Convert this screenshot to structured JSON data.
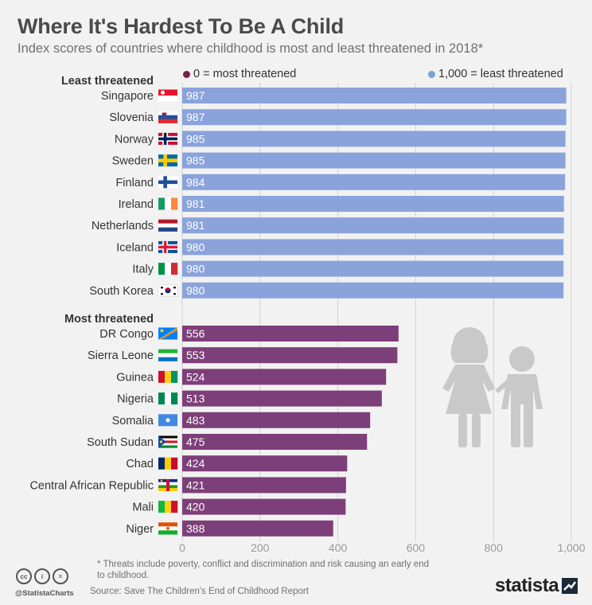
{
  "header": {
    "title": "Where It's Hardest To Be A Child",
    "subtitle": "Index scores of countries where childhood is most and least threatened in 2018*"
  },
  "legend": {
    "purple_label": "0 = most threatened",
    "blue_label": "1,000 = least threatened"
  },
  "colors": {
    "least": "#8aa3db",
    "most": "#7d3f79",
    "purple_dot": "#7a1f4e",
    "blue_dot": "#7aa0d8",
    "grid": "#d0d0d0",
    "figure": "#c9c9c9"
  },
  "chart_data": {
    "type": "bar",
    "orientation": "horizontal",
    "title": "Where It's Hardest To Be A Child",
    "subtitle": "Index scores of countries where childhood is most and least threatened in 2018*",
    "xlim": [
      0,
      1000
    ],
    "ticks": [
      0,
      200,
      400,
      600,
      800,
      1000
    ],
    "tick_labels": [
      "0",
      "200",
      "400",
      "600",
      "800",
      "1,000"
    ],
    "grid": true,
    "groups": [
      {
        "name": "Least threatened",
        "color_key": "least",
        "categories": [
          "Singapore",
          "Slovenia",
          "Norway",
          "Sweden",
          "Finland",
          "Ireland",
          "Netherlands",
          "Iceland",
          "Italy",
          "South Korea"
        ],
        "values": [
          987,
          987,
          985,
          985,
          984,
          981,
          981,
          980,
          980,
          980
        ]
      },
      {
        "name": "Most threatened",
        "color_key": "most",
        "categories": [
          "DR Congo",
          "Sierra Leone",
          "Guinea",
          "Nigeria",
          "Somalia",
          "South Sudan",
          "Chad",
          "Central African Republic",
          "Mali",
          "Niger"
        ],
        "values": [
          556,
          553,
          524,
          513,
          483,
          475,
          424,
          421,
          420,
          388
        ]
      }
    ]
  },
  "flags": {
    "Singapore": "singapore-flag-icon",
    "Slovenia": "slovenia-flag-icon",
    "Norway": "norway-flag-icon",
    "Sweden": "sweden-flag-icon",
    "Finland": "finland-flag-icon",
    "Ireland": "ireland-flag-icon",
    "Netherlands": "netherlands-flag-icon",
    "Iceland": "iceland-flag-icon",
    "Italy": "italy-flag-icon",
    "South Korea": "south-korea-flag-icon",
    "DR Congo": "dr-congo-flag-icon",
    "Sierra Leone": "sierra-leone-flag-icon",
    "Guinea": "guinea-flag-icon",
    "Nigeria": "nigeria-flag-icon",
    "Somalia": "somalia-flag-icon",
    "South Sudan": "south-sudan-flag-icon",
    "Chad": "chad-flag-icon",
    "Central African Republic": "central-african-republic-flag-icon",
    "Mali": "mali-flag-icon",
    "Niger": "niger-flag-icon"
  },
  "footer": {
    "footnote": "* Threats include poverty, conflict and discrimination and risk causing an early end to childhood.",
    "source": "Source: Save The Children's End of Childhood Report",
    "handle": "@StatistaCharts",
    "brand": "statista",
    "cc_badge_icons": [
      "cc-icon",
      "by-icon",
      "nd-icon"
    ],
    "cc_symbols": [
      "cc",
      "i",
      "="
    ]
  },
  "decoration": {
    "children_icon": "children-silhouette-icon"
  }
}
